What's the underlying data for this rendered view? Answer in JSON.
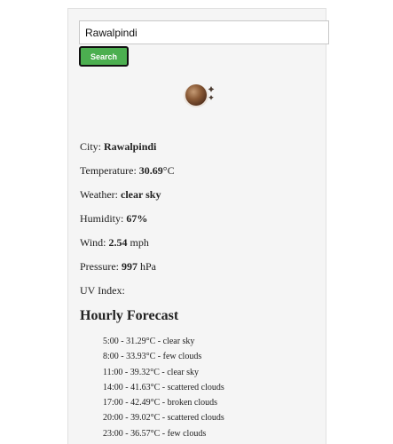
{
  "search": {
    "value": "Rawalpindi",
    "button_label": "Search"
  },
  "weather": {
    "icon": "clear-sky-night-icon",
    "city_label": "City:",
    "city": "Rawalpindi",
    "temperature_label": "Temperature:",
    "temperature_value": "30.69",
    "temperature_unit": "°C",
    "weather_label": "Weather:",
    "description": "clear sky",
    "humidity_label": "Humidity:",
    "humidity": "67%",
    "wind_label": "Wind:",
    "wind_value": "2.54",
    "wind_unit": "mph",
    "pressure_label": "Pressure:",
    "pressure_value": "997",
    "pressure_unit": "hPa",
    "uv_label": "UV Index:"
  },
  "hourly": {
    "title": "Hourly Forecast",
    "items": [
      "5:00 - 31.29°C - clear sky",
      "8:00 - 33.93°C - few clouds",
      "11:00 - 39.32°C - clear sky",
      "14:00 - 41.63°C - scattered clouds",
      "17:00 - 42.49°C - broken clouds",
      "20:00 - 39.02°C - scattered clouds",
      "23:00 - 36.57°C - few clouds"
    ]
  }
}
